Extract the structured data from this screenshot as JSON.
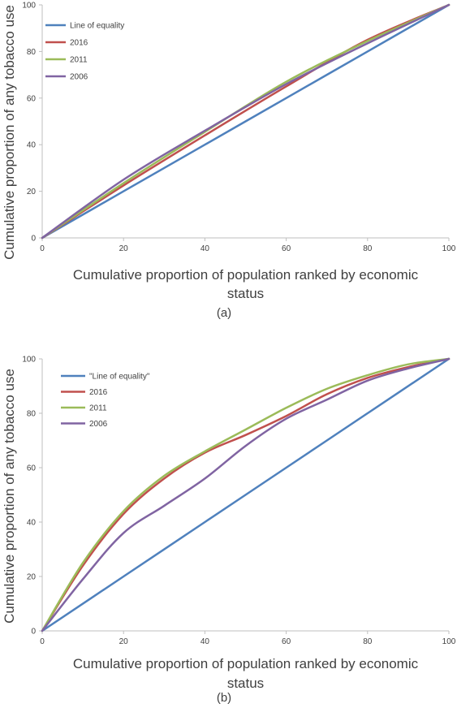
{
  "chart_data": [
    {
      "type": "line",
      "panel_label": "(a)",
      "xlabel": "Cumulative proportion of population ranked by economic status",
      "ylabel": "Cumulative proportion of any tobacco use",
      "xlim": [
        0,
        100
      ],
      "ylim": [
        0,
        100
      ],
      "xticks": [
        0,
        20,
        40,
        60,
        80,
        100
      ],
      "yticks": [
        0,
        20,
        40,
        60,
        80,
        100
      ],
      "grid": false,
      "legend_position": "top-left",
      "series": [
        {
          "name": "Line of equality",
          "color": "#4f81bd",
          "x": [
            0,
            20,
            40,
            60,
            80,
            100
          ],
          "y": [
            0,
            20,
            40,
            60,
            80,
            100
          ]
        },
        {
          "name": "2016",
          "color": "#c0504d",
          "x": [
            0,
            20,
            40,
            60,
            80,
            100
          ],
          "y": [
            0,
            22.5,
            44,
            65,
            85,
            100
          ]
        },
        {
          "name": "2011",
          "color": "#9bbb59",
          "x": [
            0,
            20,
            40,
            60,
            80,
            100
          ],
          "y": [
            0,
            23.5,
            45.5,
            67,
            84.5,
            100
          ]
        },
        {
          "name": "2006",
          "color": "#8064a2",
          "x": [
            0,
            20,
            40,
            60,
            80,
            100
          ],
          "y": [
            0,
            25,
            46,
            66,
            83.5,
            100
          ]
        }
      ]
    },
    {
      "type": "line",
      "panel_label": "(b)",
      "xlabel": "Cumulative proportion of population ranked by economic status",
      "ylabel": "Cumulative proportion of any tobacco use",
      "xlim": [
        0,
        100
      ],
      "ylim": [
        0,
        100
      ],
      "xticks": [
        0,
        20,
        40,
        60,
        80,
        100
      ],
      "yticks": [
        0,
        20,
        40,
        60,
        80,
        100
      ],
      "grid": false,
      "legend_position": "top-left",
      "series": [
        {
          "name": "\"Line of equality\"",
          "color": "#4f81bd",
          "x": [
            0,
            20,
            40,
            60,
            80,
            100
          ],
          "y": [
            0,
            20,
            40,
            60,
            80,
            100
          ]
        },
        {
          "name": "2016",
          "color": "#c0504d",
          "x": [
            0,
            10,
            20,
            30,
            40,
            50,
            60,
            70,
            80,
            90,
            100
          ],
          "y": [
            0,
            24,
            43,
            56,
            65.5,
            72,
            79,
            87,
            93,
            97,
            100
          ]
        },
        {
          "name": "2011",
          "color": "#9bbb59",
          "x": [
            0,
            10,
            20,
            30,
            40,
            50,
            60,
            70,
            80,
            90,
            100
          ],
          "y": [
            0,
            25,
            44,
            57,
            66,
            74,
            82,
            89,
            94,
            98,
            100
          ]
        },
        {
          "name": "2006",
          "color": "#8064a2",
          "x": [
            0,
            10,
            20,
            30,
            40,
            50,
            60,
            70,
            80,
            90,
            100
          ],
          "y": [
            0,
            19,
            36,
            46,
            56,
            68,
            78,
            85,
            92,
            96.5,
            100
          ]
        }
      ]
    }
  ]
}
